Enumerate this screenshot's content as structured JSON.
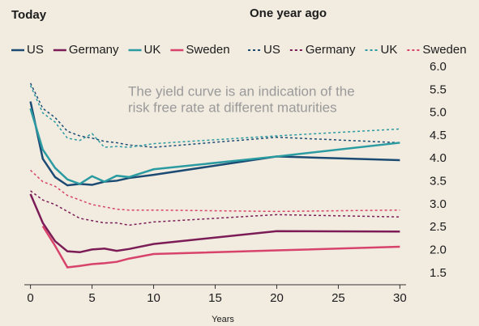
{
  "chart_data": {
    "type": "line",
    "legend_titles": [
      "Today",
      "One year ago"
    ],
    "annotation": [
      "The yield curve is an indication of the",
      "risk free rate at different maturities"
    ],
    "xlabel": "Years",
    "x": [
      0,
      1,
      2,
      3,
      4,
      5,
      6,
      7,
      8,
      10,
      20,
      30
    ],
    "series": [
      {
        "name": "US",
        "color": "#1b4a73",
        "linestyle": "dashed",
        "values": [
          5.65,
          5.1,
          4.9,
          4.6,
          4.5,
          4.45,
          4.38,
          4.35,
          4.3,
          4.25,
          4.47,
          4.35
        ]
      },
      {
        "name": "Germany",
        "color": "#7b1c56",
        "linestyle": "dashed",
        "values": [
          3.3,
          3.1,
          3.0,
          2.85,
          2.7,
          2.65,
          2.6,
          2.6,
          2.55,
          2.62,
          2.78,
          2.73
        ]
      },
      {
        "name": "UK",
        "color": "#2a9ba1",
        "linestyle": "dashed",
        "values": [
          5.6,
          5.0,
          4.8,
          4.45,
          4.4,
          4.55,
          4.25,
          4.27,
          4.25,
          4.33,
          4.5,
          4.65
        ]
      },
      {
        "name": "Sweden",
        "color": "#d8436c",
        "linestyle": "dashed",
        "values": [
          3.75,
          3.5,
          3.4,
          3.2,
          3.1,
          3.0,
          2.95,
          2.9,
          2.88,
          2.88,
          2.85,
          2.88
        ]
      },
      {
        "name": "US",
        "color": "#1b4a73",
        "linestyle": "solid",
        "values": [
          5.25,
          4.0,
          3.6,
          3.42,
          3.45,
          3.43,
          3.5,
          3.52,
          3.58,
          3.65,
          4.05,
          3.97
        ]
      },
      {
        "name": "Germany",
        "color": "#7b1c56",
        "linestyle": "solid",
        "values": [
          3.23,
          2.6,
          2.2,
          1.98,
          1.96,
          2.02,
          2.04,
          1.99,
          2.03,
          2.14,
          2.42,
          2.41
        ]
      },
      {
        "name": "UK",
        "color": "#2a9ba1",
        "linestyle": "solid",
        "values": [
          5.1,
          4.2,
          3.8,
          3.55,
          3.45,
          3.62,
          3.5,
          3.63,
          3.6,
          3.77,
          4.05,
          4.35
        ]
      },
      {
        "name": "Sweden",
        "color": "#d8436c",
        "linestyle": "solid",
        "values": [
          null,
          2.53,
          2.1,
          1.63,
          1.66,
          1.7,
          1.72,
          1.75,
          1.82,
          1.92,
          2.0,
          2.08
        ]
      }
    ],
    "xlim": [
      -0.5,
      30.5
    ],
    "xticks": [
      0,
      5,
      10,
      15,
      20,
      25,
      30
    ],
    "ylim": [
      1.25,
      6.0
    ],
    "yticks": [
      {
        "value": 1.5,
        "label": "1.5"
      },
      {
        "value": 2,
        "label": "2.0"
      },
      {
        "value": 2.5,
        "label": "2.5"
      },
      {
        "value": 3,
        "label": "3.0"
      },
      {
        "value": 3.5,
        "label": "3.5"
      },
      {
        "value": 4,
        "label": "4.0"
      },
      {
        "value": 4.5,
        "label": "4.5"
      },
      {
        "value": 5,
        "label": "5.0"
      },
      {
        "value": 5.5,
        "label": "5.5"
      },
      {
        "value": 6,
        "label": "6.0"
      }
    ],
    "grid": false
  }
}
